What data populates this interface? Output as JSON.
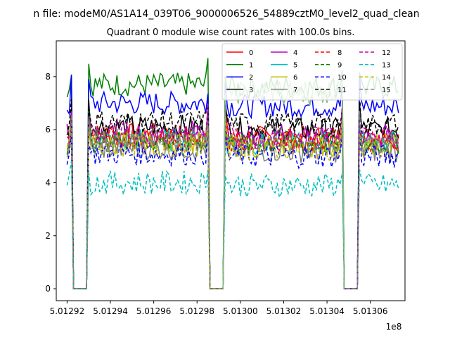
{
  "chart_data": {
    "type": "line",
    "suptitle": "n file: modeM0/AS1A14_039T06_9000006526_54889cztM0_level2_quad_clean",
    "title": "Quadrant 0 module wise count rates with 100.0s bins.",
    "xlabel": "",
    "ylabel": "",
    "x_offset_label": "1e8",
    "xlim": [
      5.012915,
      5.013076
    ],
    "ylim": [
      -0.45,
      9.35
    ],
    "x_ticks": [
      5.01292,
      5.01294,
      5.01296,
      5.01298,
      5.013,
      5.01302,
      5.01304,
      5.01306
    ],
    "x_tick_labels": [
      "5.01292",
      "5.01294",
      "5.01296",
      "5.01298",
      "5.01300",
      "5.01302",
      "5.01304",
      "5.01306"
    ],
    "y_ticks": [
      0,
      2,
      4,
      6,
      8
    ],
    "y_tick_labels": [
      "0",
      "2",
      "4",
      "6",
      "8"
    ],
    "legend": {
      "placement": "top-right",
      "columns": 4
    },
    "series_base": [
      {
        "name": "0",
        "color": "#ff0000",
        "dash": "solid",
        "base": 5.7
      },
      {
        "name": "1",
        "color": "#008000",
        "dash": "solid",
        "base": 7.6
      },
      {
        "name": "2",
        "color": "#0000ff",
        "dash": "solid",
        "base": 6.9
      },
      {
        "name": "3",
        "color": "#000000",
        "dash": "solid",
        "base": 6.0
      },
      {
        "name": "4",
        "color": "#bf00bf",
        "dash": "solid",
        "base": 5.6
      },
      {
        "name": "5",
        "color": "#00bfbf",
        "dash": "solid",
        "base": 5.5
      },
      {
        "name": "6",
        "color": "#bfbf00",
        "dash": "solid",
        "base": 5.4
      },
      {
        "name": "7",
        "color": "#808080",
        "dash": "solid",
        "base": 5.2
      },
      {
        "name": "8",
        "color": "#ff0000",
        "dash": "dashed",
        "base": 5.6
      },
      {
        "name": "9",
        "color": "#008000",
        "dash": "dashed",
        "base": 5.5
      },
      {
        "name": "10",
        "color": "#0000ff",
        "dash": "dashed",
        "base": 5.0
      },
      {
        "name": "11",
        "color": "#000000",
        "dash": "dashed",
        "base": 6.2
      },
      {
        "name": "12",
        "color": "#bf00bf",
        "dash": "dashed",
        "base": 5.8
      },
      {
        "name": "13",
        "color": "#00bfbf",
        "dash": "dashed",
        "base": 3.9
      },
      {
        "name": "14",
        "color": "#bfbf00",
        "dash": "dashed",
        "base": 5.3
      },
      {
        "name": "15",
        "color": "#808080",
        "dash": "dashed",
        "base": 5.5
      }
    ],
    "time_profile": {
      "x_start": 5.01292,
      "x_end": 5.013073,
      "step": 1e-06,
      "gaps": [
        [
          5.012923,
          5.012929
        ],
        [
          5.012986,
          5.012992
        ],
        [
          5.013048,
          5.013054
        ]
      ],
      "highlight": {
        "series": "15",
        "color": "#80c080",
        "segment": [
          5.012992,
          5.013048
        ],
        "level": 7.4
      }
    }
  }
}
